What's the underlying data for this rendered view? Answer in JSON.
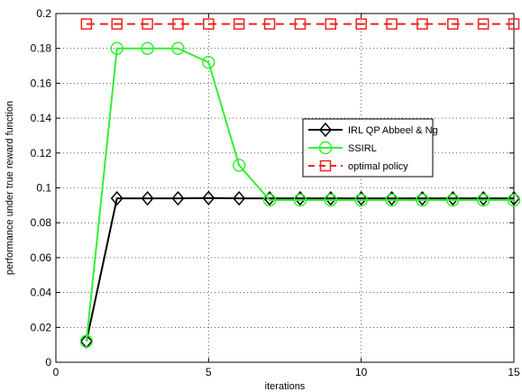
{
  "chart_data": {
    "type": "line",
    "xlabel": "iterations",
    "ylabel": "performance under true reward function",
    "xlim": [
      0,
      15
    ],
    "ylim": [
      0,
      0.2
    ],
    "xticks": [
      0,
      5,
      10,
      15
    ],
    "yticks": [
      0,
      0.02,
      0.04,
      0.06,
      0.08,
      0.1,
      0.12,
      0.14,
      0.16,
      0.18,
      0.2
    ],
    "grid": true,
    "legend_position": "right",
    "x": [
      1,
      2,
      3,
      4,
      5,
      6,
      7,
      8,
      9,
      10,
      11,
      12,
      13,
      14,
      15
    ],
    "series": [
      {
        "name": "IRL QP Abbeel & Ng",
        "color": "#000000",
        "line_style": "solid",
        "marker": "diamond",
        "values": [
          0.012,
          0.094,
          0.094,
          0.094,
          0.0942,
          0.094,
          0.094,
          0.094,
          0.094,
          0.094,
          0.094,
          0.094,
          0.094,
          0.094,
          0.094
        ]
      },
      {
        "name": "SSIRL",
        "color": "#33ee33",
        "line_style": "solid",
        "marker": "circle",
        "values": [
          0.012,
          0.18,
          0.18,
          0.18,
          0.172,
          0.113,
          0.093,
          0.093,
          0.093,
          0.093,
          0.093,
          0.093,
          0.093,
          0.093,
          0.093
        ]
      },
      {
        "name": "optimal policy",
        "color": "#ee2222",
        "line_style": "dashed",
        "marker": "square",
        "values": [
          0.194,
          0.194,
          0.194,
          0.194,
          0.194,
          0.194,
          0.194,
          0.194,
          0.194,
          0.194,
          0.194,
          0.194,
          0.194,
          0.194,
          0.194
        ]
      }
    ]
  }
}
